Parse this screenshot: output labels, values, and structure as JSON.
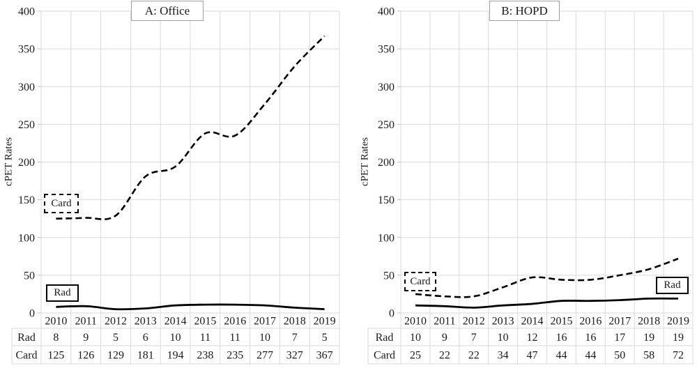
{
  "chart_data": [
    {
      "type": "line",
      "title": "A: Office",
      "xlabel": "",
      "ylabel": "cPET Rates",
      "ylim": [
        0,
        400
      ],
      "ytick_step": 50,
      "grid": true,
      "legend_style": "floating boxes on plot",
      "categories": [
        "2010",
        "2011",
        "2012",
        "2013",
        "2014",
        "2015",
        "2016",
        "2017",
        "2018",
        "2019"
      ],
      "series": [
        {
          "name": "Rad",
          "line": "solid",
          "color": "#000000",
          "values": [
            8,
            9,
            5,
            6,
            10,
            11,
            11,
            10,
            7,
            5
          ]
        },
        {
          "name": "Card",
          "line": "dashed",
          "color": "#000000",
          "values": [
            125,
            126,
            129,
            181,
            194,
            238,
            235,
            277,
            327,
            367
          ]
        }
      ],
      "data_table": {
        "row_headers": [
          "Rad",
          "Card"
        ],
        "rows": [
          [
            8,
            9,
            5,
            6,
            10,
            11,
            11,
            10,
            7,
            5
          ],
          [
            125,
            126,
            129,
            181,
            194,
            238,
            235,
            277,
            327,
            367
          ]
        ]
      }
    },
    {
      "type": "line",
      "title": "B: HOPD",
      "xlabel": "",
      "ylabel": "cPET Rates",
      "ylim": [
        0,
        400
      ],
      "ytick_step": 50,
      "grid": true,
      "legend_style": "floating boxes on plot",
      "categories": [
        "2010",
        "2011",
        "2012",
        "2013",
        "2014",
        "2015",
        "2016",
        "2017",
        "2018",
        "2019"
      ],
      "series": [
        {
          "name": "Rad",
          "line": "solid",
          "color": "#000000",
          "values": [
            10,
            9,
            7,
            10,
            12,
            16,
            16,
            17,
            19,
            19
          ]
        },
        {
          "name": "Card",
          "line": "dashed",
          "color": "#000000",
          "values": [
            25,
            22,
            22,
            34,
            47,
            44,
            44,
            50,
            58,
            72
          ]
        }
      ],
      "data_table": {
        "row_headers": [
          "Rad",
          "Card"
        ],
        "rows": [
          [
            10,
            9,
            7,
            10,
            12,
            16,
            16,
            17,
            19,
            19
          ],
          [
            25,
            22,
            22,
            34,
            47,
            44,
            44,
            50,
            58,
            72
          ]
        ]
      }
    }
  ],
  "colors": {
    "series": "#000000",
    "gridline": "#d9d9d9",
    "tick": "#bfbfbf",
    "text": "#1a1a1a",
    "title_border": "#a0a0a0"
  }
}
